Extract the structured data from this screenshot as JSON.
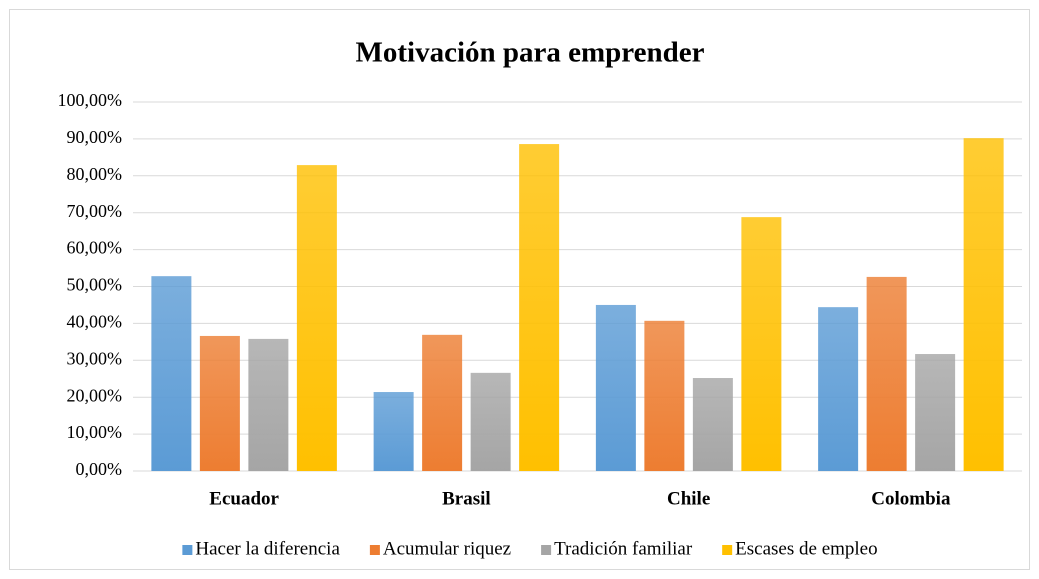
{
  "chart_data": {
    "type": "bar",
    "title": "Motivación para emprender",
    "categories": [
      "Ecuador",
      "Brasil",
      "Chile",
      "Colombia"
    ],
    "series": [
      {
        "name": "Hacer la diferencia",
        "color": "#5b9bd5",
        "values": [
          52.8,
          21.4,
          45.0,
          44.4
        ]
      },
      {
        "name": "Acumular riquez",
        "color": "#ed7d31",
        "values": [
          36.6,
          36.9,
          40.7,
          52.6
        ]
      },
      {
        "name": "Tradición familiar",
        "color": "#a5a5a5",
        "values": [
          35.8,
          26.6,
          25.2,
          31.7
        ]
      },
      {
        "name": "Escases de empleo",
        "color": "#ffc000",
        "values": [
          82.9,
          88.6,
          68.8,
          90.2
        ]
      }
    ],
    "ylim": [
      0,
      100
    ],
    "yticks": [
      {
        "value": 0,
        "label": "0,00%"
      },
      {
        "value": 10,
        "label": "10,00%"
      },
      {
        "value": 20,
        "label": "20,00%"
      },
      {
        "value": 30,
        "label": "30,00%"
      },
      {
        "value": 40,
        "label": "40,00%"
      },
      {
        "value": 50,
        "label": "50,00%"
      },
      {
        "value": 60,
        "label": "60,00%"
      },
      {
        "value": 70,
        "label": "70,00%"
      },
      {
        "value": 80,
        "label": "80,00%"
      },
      {
        "value": 90,
        "label": "90,00%"
      },
      {
        "value": 100,
        "label": "100,00%"
      }
    ],
    "grid": true,
    "legend": "bottom"
  }
}
